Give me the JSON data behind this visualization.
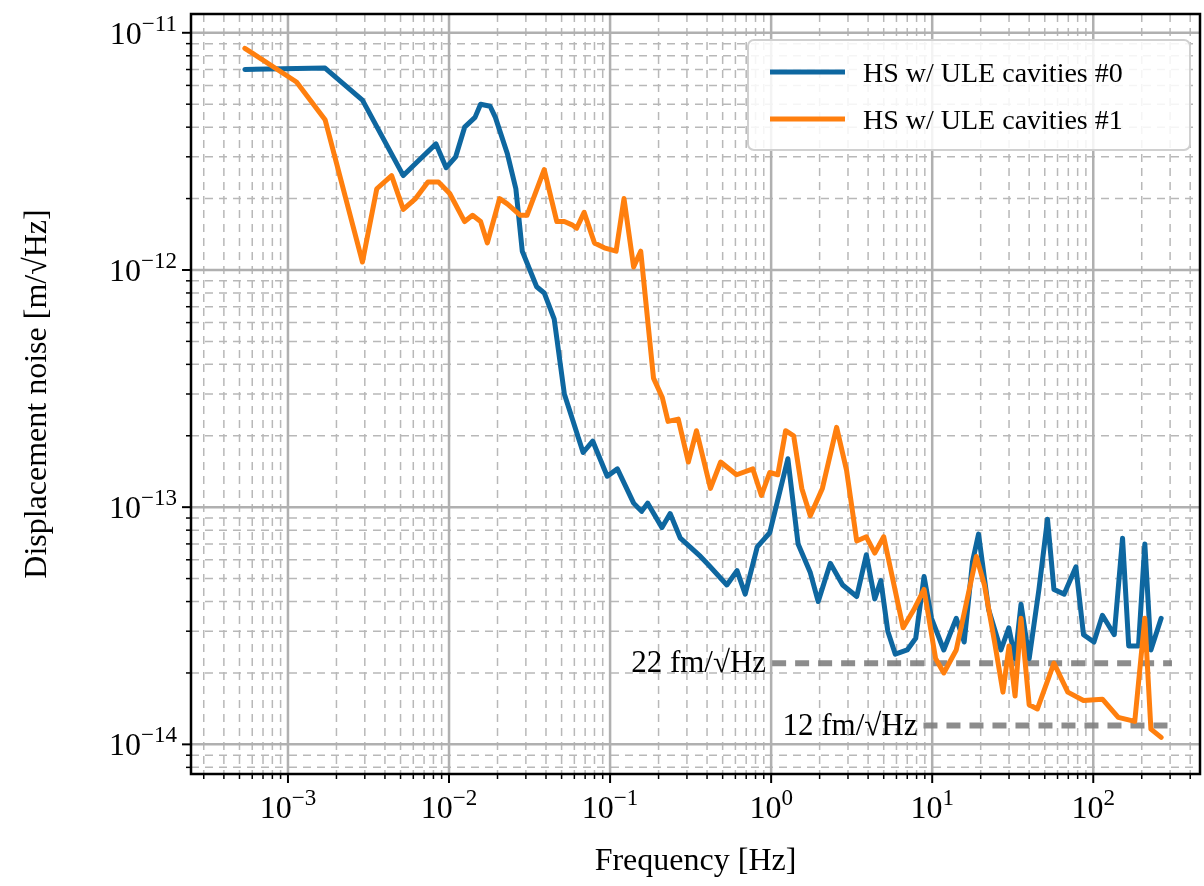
{
  "chart_data": {
    "type": "line",
    "xlabel": "Frequency [Hz]",
    "ylabel": "Displacement noise [m/√Hz]",
    "log": "xy",
    "grid": true,
    "legend": "top right",
    "xlim": [
      0.00025,
      460
    ],
    "ylim": [
      7.5e-15,
      1.2e-11
    ],
    "xticks": [
      {
        "value": 0.001,
        "label": "10$^{−3}$"
      },
      {
        "value": 0.01,
        "label": "10$^{−2}$"
      },
      {
        "value": 0.1,
        "label": "10$^{−1}$"
      },
      {
        "value": 1,
        "label": "10$^{0}$"
      },
      {
        "value": 10,
        "label": "10$^{1}$"
      },
      {
        "value": 100,
        "label": "10$^{2}$"
      }
    ],
    "yticks": [
      {
        "value": 1e-14,
        "label": "10$^{−14}$"
      },
      {
        "value": 1e-13,
        "label": "10$^{−13}$"
      },
      {
        "value": 1e-12,
        "label": "10$^{−12}$"
      },
      {
        "value": 1e-11,
        "label": "10$^{−11}$"
      }
    ],
    "ref_lines": [
      {
        "axis": "y",
        "value": 2.2e-14,
        "label": "22 fm/√Hz",
        "color": "#808080",
        "line_style": "dashed"
      },
      {
        "axis": "y",
        "value": 1.2e-14,
        "label": "12 fm/√Hz",
        "color": "#808080",
        "line_style": "dashed"
      }
    ],
    "series": [
      {
        "name": "HS w/ ULE cavities #0",
        "color": "#0e67a0",
        "x": [
          0.00054,
          0.0017,
          0.0029,
          0.0052,
          0.0065,
          0.0083,
          0.0096,
          0.011,
          0.0125,
          0.0145,
          0.0157,
          0.018,
          0.0194,
          0.023,
          0.026,
          0.0285,
          0.035,
          0.039,
          0.045,
          0.052,
          0.068,
          0.078,
          0.096,
          0.111,
          0.14,
          0.157,
          0.171,
          0.21,
          0.236,
          0.273,
          0.364,
          0.409,
          0.531,
          0.614,
          0.69,
          0.82,
          0.98,
          1.27,
          1.47,
          1.75,
          1.96,
          2.33,
          2.78,
          3.4,
          3.9,
          4.4,
          4.8,
          5.3,
          5.9,
          7.0,
          7.9,
          8.9,
          9.9,
          11.8,
          14.1,
          15.8,
          17.8,
          19.4,
          22.4,
          26.7,
          29.9,
          32.7,
          35.6,
          40,
          46,
          52,
          57,
          66,
          78,
          87,
          101,
          114,
          135,
          152,
          166,
          191,
          209,
          228,
          264
        ],
        "values": [
          7e-12,
          7.1e-12,
          5.2e-12,
          2.5e-12,
          2.9e-12,
          3.4e-12,
          2.7e-12,
          3e-12,
          4e-12,
          4.4e-12,
          5e-12,
          4.9e-12,
          4.4e-12,
          3.1e-12,
          2.2e-12,
          1.2e-12,
          8.5e-13,
          8e-13,
          6.2e-13,
          3e-13,
          1.7e-13,
          1.9e-13,
          1.35e-13,
          1.45e-13,
          1.04e-13,
          9.6e-14,
          1.04e-13,
          8.2e-14,
          9.4e-14,
          7.4e-14,
          6.2e-14,
          5.7e-14,
          4.7e-14,
          5.4e-14,
          4.3e-14,
          6.8e-14,
          7.8e-14,
          1.6e-13,
          7e-14,
          5.3e-14,
          4e-14,
          5.8e-14,
          4.7e-14,
          4.2e-14,
          6.3e-14,
          4.1e-14,
          4.9e-14,
          3e-14,
          2.4e-14,
          2.5e-14,
          2.8e-14,
          5.1e-14,
          3.4e-14,
          2.5e-14,
          3.4e-14,
          2.7e-14,
          5.9e-14,
          7.7e-14,
          3.7e-14,
          2.5e-14,
          3.1e-14,
          2.3e-14,
          3.9e-14,
          2.3e-14,
          4.5e-14,
          8.9e-14,
          4.5e-14,
          4.3e-14,
          5.6e-14,
          2.9e-14,
          2.7e-14,
          3.5e-14,
          2.9e-14,
          7.4e-14,
          2.6e-14,
          2.6e-14,
          7e-14,
          2.5e-14,
          3.4e-14
        ]
      },
      {
        "name": "HS w/ ULE cavities #1",
        "color": "#ff7f0e",
        "x": [
          0.00054,
          0.00113,
          0.0017,
          0.0029,
          0.00356,
          0.0044,
          0.0052,
          0.0062,
          0.0074,
          0.0086,
          0.0101,
          0.0125,
          0.014,
          0.0157,
          0.0173,
          0.0206,
          0.023,
          0.0277,
          0.0305,
          0.039,
          0.0467,
          0.052,
          0.058,
          0.062,
          0.069,
          0.08,
          0.092,
          0.109,
          0.122,
          0.14,
          0.155,
          0.186,
          0.211,
          0.229,
          0.265,
          0.306,
          0.344,
          0.42,
          0.486,
          0.61,
          0.77,
          0.87,
          0.98,
          1.1,
          1.23,
          1.38,
          1.55,
          1.75,
          2.08,
          2.55,
          2.94,
          3.4,
          3.9,
          4.4,
          5.0,
          6.6,
          7.7,
          8.9,
          10.5,
          11.8,
          14.1,
          18.8,
          21.1,
          24.4,
          27.5,
          30,
          32.7,
          35.6,
          40,
          45,
          57,
          69.5,
          87,
          114,
          143,
          181,
          209,
          228,
          264
        ],
        "values": [
          8.6e-12,
          6.2e-12,
          4.3e-12,
          1.08e-12,
          2.2e-12,
          2.5e-12,
          1.8e-12,
          2e-12,
          2.35e-12,
          2.35e-12,
          2.1e-12,
          1.6e-12,
          1.7e-12,
          1.6e-12,
          1.3e-12,
          2e-12,
          1.9e-12,
          1.7e-12,
          1.7e-12,
          2.65e-12,
          1.6e-12,
          1.6e-12,
          1.55e-12,
          1.5e-12,
          1.75e-12,
          1.3e-12,
          1.24e-12,
          1.2e-12,
          2e-12,
          1.03e-12,
          1.2e-12,
          3.5e-13,
          2.9e-13,
          2.3e-13,
          2.35e-13,
          1.55e-13,
          2.1e-13,
          1.2e-13,
          1.55e-13,
          1.37e-13,
          1.45e-13,
          1.12e-13,
          1.4e-13,
          1.37e-13,
          2.1e-13,
          2e-13,
          1.2e-13,
          9.2e-14,
          1.2e-13,
          2.17e-13,
          1.43e-13,
          7.2e-14,
          7.5e-14,
          6.4e-14,
          7.5e-14,
          3.1e-14,
          3.7e-14,
          4.5e-14,
          2.3e-14,
          2e-14,
          2.5e-14,
          6.2e-14,
          4.7e-14,
          2.7e-14,
          1.66e-14,
          2.6e-14,
          1.6e-14,
          3.4e-14,
          1.47e-14,
          1.41e-14,
          2.2e-14,
          1.66e-14,
          1.53e-14,
          1.55e-14,
          1.3e-14,
          1.25e-14,
          3.4e-14,
          1.16e-14,
          1.07e-14
        ]
      }
    ]
  }
}
